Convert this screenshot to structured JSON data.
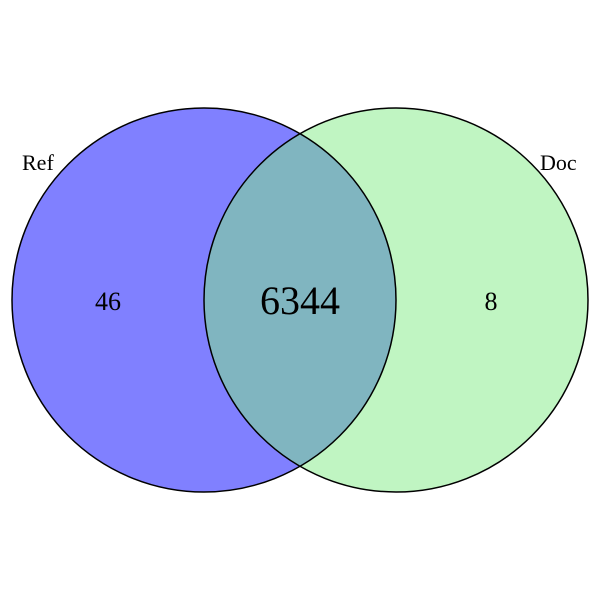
{
  "venn": {
    "sets": [
      {
        "label": "Ref",
        "color": "#8080ff"
      },
      {
        "label": "Doc",
        "color": "#c0f5c2"
      }
    ],
    "overlap_color": "#80b5c0",
    "outline_color": "#000000",
    "counts": {
      "ref_only": "46",
      "both": "6344",
      "doc_only": "8"
    }
  }
}
